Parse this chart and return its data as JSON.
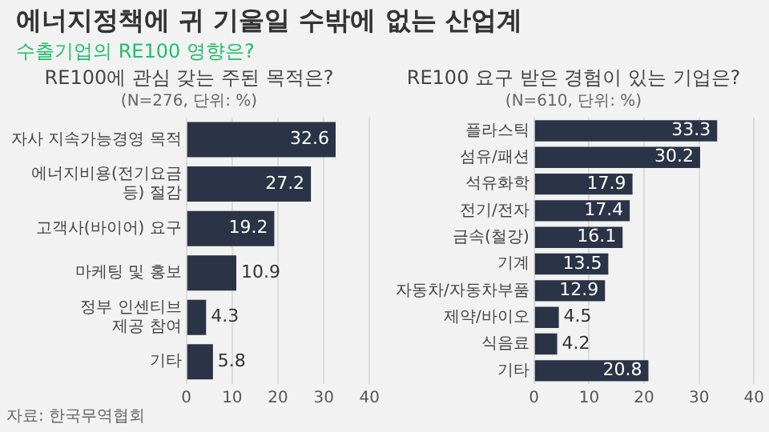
{
  "chart_data": [
    {
      "type": "bar",
      "orientation": "horizontal",
      "title": "RE100에 관심 갖는 주된 목적은?",
      "subtitle": "(N=276, 단위: %)",
      "annotations": [
        "에너지정책에 귀 기울일 수밖에 없는 산업계",
        "수출기업의 RE100 영향은?",
        "자료: 한국무역협회"
      ],
      "categories": [
        "자사 지속가능경영 목적",
        "에너지비용(전기요금 등) 절감",
        "고객사(바이어) 요구",
        "마케팅 및 홍보",
        "정부 인센티브 제공 참여",
        "기타"
      ],
      "values": [
        32.6,
        27.2,
        19.2,
        10.9,
        4.3,
        5.8
      ],
      "color": "#2b3446",
      "xlim": [
        0,
        40
      ],
      "xticks": [
        0,
        10,
        20,
        30,
        40
      ],
      "grid": "x",
      "data_labels": true
    },
    {
      "type": "bar",
      "orientation": "horizontal",
      "title": "RE100 요구 받은 경험이 있는 기업은?",
      "subtitle": "(N=610, 단위: %)",
      "categories": [
        "플라스틱",
        "섬유/패션",
        "석유화학",
        "전기/전자",
        "금속(철강)",
        "기계",
        "자동차/자동차부품",
        "제약/바이오",
        "식음료",
        "기타"
      ],
      "values": [
        33.3,
        30.2,
        17.9,
        17.4,
        16.1,
        13.5,
        12.9,
        4.5,
        4.2,
        20.8
      ],
      "color": "#2b3446",
      "xlim": [
        0,
        40
      ],
      "xticks": [
        0,
        10,
        20,
        30,
        40
      ],
      "grid": "x",
      "data_labels": true
    }
  ]
}
